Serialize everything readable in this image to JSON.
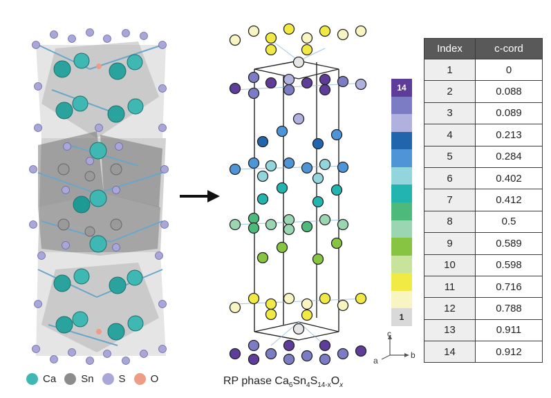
{
  "legend": [
    {
      "label": "Ca",
      "color": "#3fb8b3"
    },
    {
      "label": "Sn",
      "color": "#8c8c8c"
    },
    {
      "label": "S",
      "color": "#a9a6d8"
    },
    {
      "label": "O",
      "color": "#ee9c86"
    }
  ],
  "caption": {
    "prefix": "RP phase Ca",
    "sub1": "6",
    "mid1": "Sn",
    "sub2": "4",
    "mid2": "S",
    "sub3": "14-x",
    "mid3": "O",
    "sub4": "x"
  },
  "colorbar": {
    "top_label": "14",
    "bottom_label": "1",
    "colors": [
      "#5e3c99",
      "#7b7cc4",
      "#b1b1e0",
      "#2166ac",
      "#4d95d6",
      "#92d5dd",
      "#22b5b0",
      "#4dba7c",
      "#9bd6b3",
      "#86c441",
      "#c8e39b",
      "#f2ea44",
      "#f8f5c2",
      "#d9d9d9"
    ]
  },
  "table": {
    "headers": [
      "Index",
      "c-cord"
    ],
    "rows": [
      [
        "1",
        "0"
      ],
      [
        "2",
        "0.088"
      ],
      [
        "3",
        "0.089"
      ],
      [
        "4",
        "0.213"
      ],
      [
        "5",
        "0.284"
      ],
      [
        "6",
        "0.402"
      ],
      [
        "7",
        "0.412"
      ],
      [
        "8",
        "0.5"
      ],
      [
        "9",
        "0.589"
      ],
      [
        "10",
        "0.598"
      ],
      [
        "11",
        "0.716"
      ],
      [
        "12",
        "0.788"
      ],
      [
        "13",
        "0.911"
      ],
      [
        "14",
        "0.912"
      ]
    ]
  },
  "axes": {
    "c": "c",
    "a": "a",
    "b": "b"
  },
  "atom_colors": {
    "ca": "#3fb8b3",
    "sn": "#8c8c8c",
    "s": "#a9a6d8",
    "o": "#ee9c86",
    "idx1": "#e6e6e6",
    "idx2": "#5e3c99",
    "idx3": "#7b7cc4",
    "idx4": "#b1b1e0",
    "idx5": "#2166ac",
    "idx6": "#4d95d6",
    "idx7": "#92d5dd",
    "idx8": "#22b5b0",
    "idx9": "#4dba7c",
    "idx10": "#9bd6b3",
    "idx11": "#86c441",
    "idx12": "#c8e39b",
    "idx13": "#f2ea44",
    "idx14": "#f8f5c2"
  }
}
